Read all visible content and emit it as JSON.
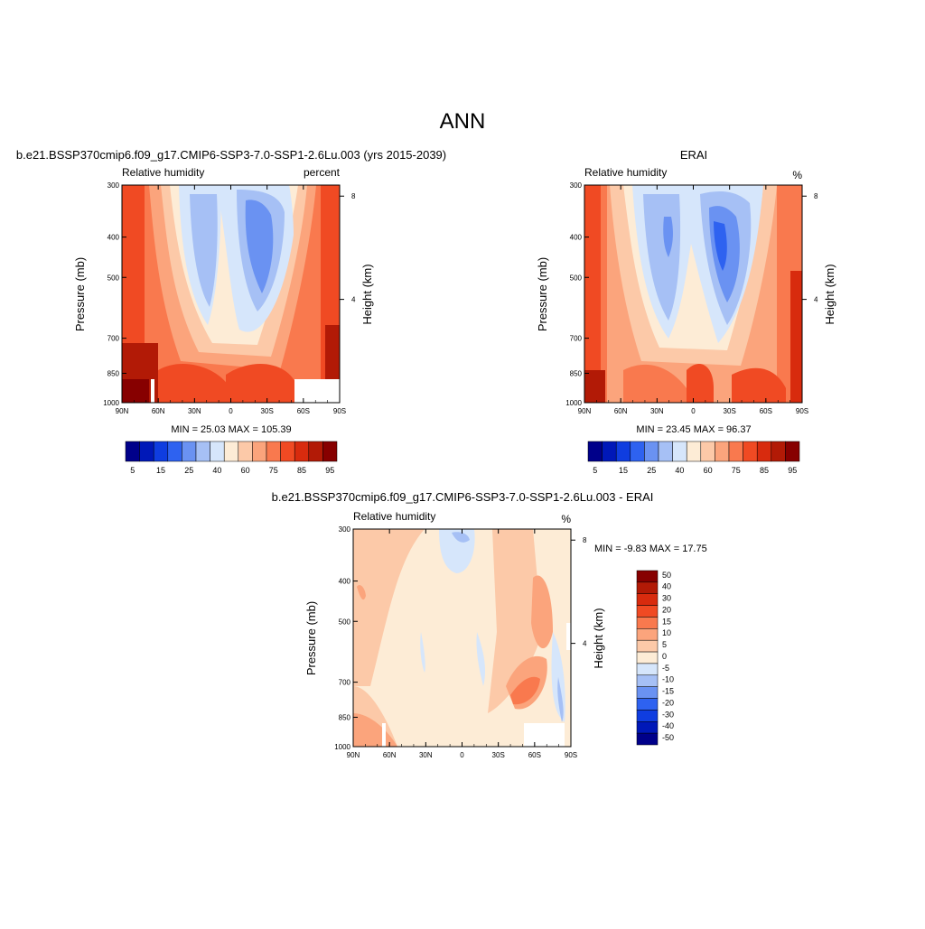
{
  "page": {
    "title": "ANN"
  },
  "colors": {
    "abs_levels": [
      "#00008a",
      "#0018b8",
      "#0f3de0",
      "#2e62f0",
      "#6a92f2",
      "#a6c0f5",
      "#d6e6fb",
      "#fdecd6",
      "#fcc9a8",
      "#fba47c",
      "#f9794e",
      "#f04a23",
      "#d82b0e",
      "#b21a06",
      "#870000"
    ],
    "diff_levels": [
      "#00008a",
      "#0018b8",
      "#0f3de0",
      "#2e62f0",
      "#6a92f2",
      "#a6c0f5",
      "#d6e6fb",
      "#fdecd6",
      "#fcc9a8",
      "#fba47c",
      "#f9794e",
      "#f04a23",
      "#d82b0e",
      "#b21a06",
      "#870000"
    ]
  },
  "chart_data": [
    {
      "type": "heatmap",
      "title": "b.e21.BSSP370cmip6.f09_g17.CMIP6-SSP3-7.0-SSP1-2.6Lu.003 (yrs 2015-2039)",
      "left_label": "Relative humidity",
      "right_label": "percent",
      "ylabel": "Pressure (mb)",
      "ylabel_right": "Height (km)",
      "x_ticks": [
        "90N",
        "60N",
        "30N",
        "0",
        "30S",
        "60S",
        "90S"
      ],
      "y_ticks": [
        "300",
        "400",
        "500",
        "700",
        "850",
        "1000"
      ],
      "y_ticks_right": [
        "8",
        "4"
      ],
      "stats": "MIN =  25.03  MAX = 105.39",
      "colorbar_labels": [
        "5",
        "15",
        "25",
        "40",
        "60",
        "75",
        "85",
        "95"
      ],
      "min": 25.03,
      "max": 105.39
    },
    {
      "type": "heatmap",
      "title": "ERAI",
      "left_label": "Relative humidity",
      "right_label": "%",
      "ylabel": "Pressure (mb)",
      "ylabel_right": "Height (km)",
      "x_ticks": [
        "90N",
        "60N",
        "30N",
        "0",
        "30S",
        "60S",
        "90S"
      ],
      "y_ticks": [
        "300",
        "400",
        "500",
        "700",
        "850",
        "1000"
      ],
      "y_ticks_right": [
        "8",
        "4"
      ],
      "stats": "MIN =  23.45  MAX =  96.37",
      "colorbar_labels": [
        "5",
        "15",
        "25",
        "40",
        "60",
        "75",
        "85",
        "95"
      ],
      "min": 23.45,
      "max": 96.37
    },
    {
      "type": "heatmap",
      "title": "b.e21.BSSP370cmip6.f09_g17.CMIP6-SSP3-7.0-SSP1-2.6Lu.003 - ERAI",
      "left_label": "Relative humidity",
      "right_label": "%",
      "ylabel": "Pressure (mb)",
      "ylabel_right": "Height (km)",
      "x_ticks": [
        "90N",
        "60N",
        "30N",
        "0",
        "30S",
        "60S",
        "90S"
      ],
      "y_ticks": [
        "300",
        "400",
        "500",
        "700",
        "850",
        "1000"
      ],
      "y_ticks_right": [
        "8",
        "4"
      ],
      "stats": "MIN =  -9.83  MAX =  17.75",
      "colorbar_labels": [
        "50",
        "40",
        "30",
        "20",
        "15",
        "10",
        "5",
        "0",
        "-5",
        "-10",
        "-15",
        "-20",
        "-30",
        "-40",
        "-50"
      ],
      "min": -9.83,
      "max": 17.75
    }
  ]
}
